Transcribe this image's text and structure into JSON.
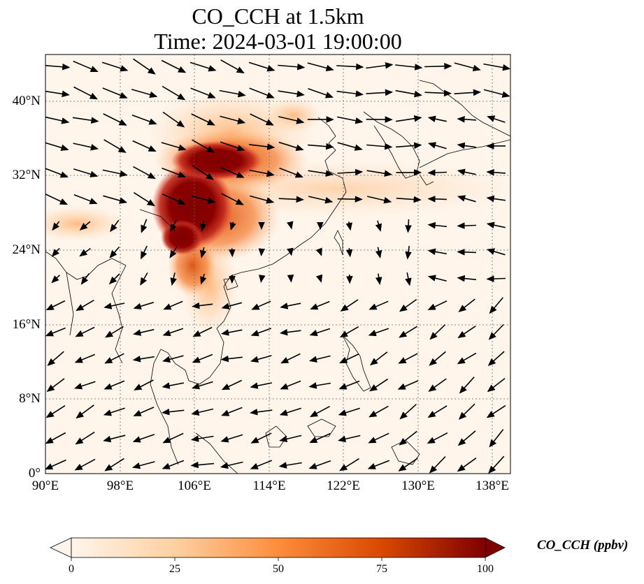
{
  "title": {
    "line1": "CO_CCH at 1.5km",
    "line2": "Time: 2024-03-01 19:00:00"
  },
  "map": {
    "lon_ticks": [
      "90°E",
      "98°E",
      "106°E",
      "114°E",
      "122°E",
      "130°E",
      "138°E"
    ],
    "lat_ticks": [
      "40°N",
      "32°N",
      "24°N",
      "16°N",
      "8°N",
      "0°"
    ],
    "gridlines": true,
    "wind_vectors": true
  },
  "colorbar": {
    "label": "CO_CCH (ppbv)",
    "ticks": [
      "0",
      "25",
      "50",
      "75",
      "100"
    ],
    "colors": [
      "#fff5eb",
      "#fdd0a2",
      "#fd8d3c",
      "#d94801",
      "#7f0000"
    ],
    "extend": "both"
  }
}
